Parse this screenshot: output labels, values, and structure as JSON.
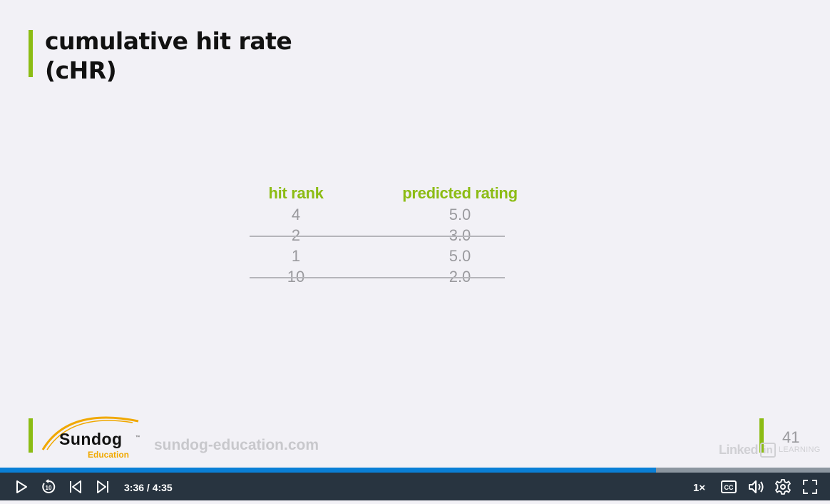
{
  "slide": {
    "title_line1": "cumulative hit rate",
    "title_line2": "(cHR)",
    "table": {
      "headers": [
        "hit rank",
        "predicted rating"
      ],
      "rows": [
        {
          "rank": "4",
          "rating": "5.0",
          "struck": false
        },
        {
          "rank": "2",
          "rating": "3.0",
          "struck": true
        },
        {
          "rank": "1",
          "rating": "5.0",
          "struck": false
        },
        {
          "rank": "10",
          "rating": "2.0",
          "struck": true
        }
      ]
    },
    "footer": {
      "logo_name": "Sundog",
      "logo_trademark": "™",
      "logo_sub": "Education",
      "url": "sundog-education.com",
      "slide_number": "41",
      "linkedin_word": "Linked",
      "linkedin_in": "in",
      "linkedin_learning": "LEARNING"
    },
    "accent_color": "#8cbc14"
  },
  "player": {
    "time": "3:36 / 4:35",
    "progress": 0.79,
    "speed": "1×",
    "icons": [
      "play-icon",
      "rewind-10-icon",
      "previous-icon",
      "next-icon",
      "closed-captions-icon",
      "volume-icon",
      "settings-icon",
      "fullscreen-icon"
    ],
    "progress_color": "#0a7fd6",
    "bar_color": "#283440"
  }
}
